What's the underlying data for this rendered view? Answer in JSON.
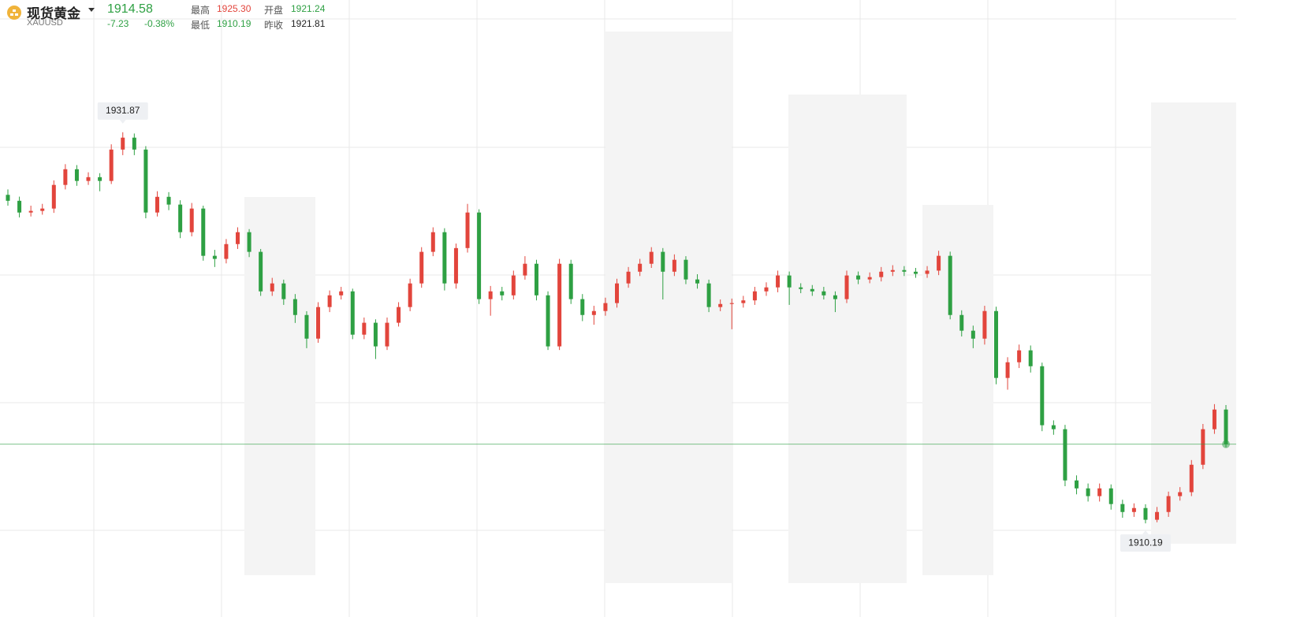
{
  "header": {
    "name": "现货黄金",
    "symbol": "XAUUSD",
    "price": "1914.58",
    "change": "-7.23",
    "change_pct": "-0.38%",
    "stats": [
      {
        "label": "最高",
        "value": "1925.30"
      },
      {
        "label": "开盘",
        "value": "1921.24"
      },
      {
        "label": "最低",
        "value": "1910.19"
      },
      {
        "label": "昨收",
        "value": "1921.81"
      }
    ]
  },
  "chart_data": {
    "type": "candlestick",
    "ylim": [
      1905.0,
      1939.2
    ],
    "up_color": "#e2453c",
    "down_color": "#2ea043",
    "open": [
      1928.4,
      1928.07,
      1927.42,
      1927.51,
      1927.64,
      1928.95,
      1929.82,
      1929.17,
      1929.38,
      1929.17,
      1930.91,
      1931.57,
      1930.91,
      1927.42,
      1928.29,
      1927.86,
      1926.33,
      1927.64,
      1925.02,
      1924.85,
      1925.67,
      1926.33,
      1925.24,
      1923.05,
      1923.49,
      1922.62,
      1921.74,
      1920.43,
      1922.18,
      1922.83,
      1923.05,
      1920.65,
      1921.31,
      1920.0,
      1921.31,
      1922.18,
      1923.49,
      1925.24,
      1926.33,
      1923.49,
      1925.45,
      1927.42,
      1922.62,
      1923.05,
      1922.83,
      1923.93,
      1924.58,
      1922.83,
      1920.0,
      1924.58,
      1922.62,
      1921.74,
      1921.96,
      1922.4,
      1923.49,
      1924.14,
      1924.58,
      1925.24,
      1924.14,
      1924.8,
      1923.71,
      1923.49,
      1922.18,
      1922.35,
      1922.4,
      1922.55,
      1923.05,
      1923.27,
      1923.93,
      1923.27,
      1923.18,
      1923.05,
      1922.83,
      1922.62,
      1923.93,
      1923.71,
      1923.84,
      1924.14,
      1924.23,
      1924.14,
      1924.02,
      1924.2,
      1925.02,
      1921.74,
      1920.87,
      1920.43,
      1921.96,
      1918.25,
      1919.12,
      1919.78,
      1918.9,
      1915.63,
      1915.41,
      1912.57,
      1912.13,
      1911.7,
      1912.13,
      1911.26,
      1910.82,
      1911.04,
      1910.39,
      1910.82,
      1911.7,
      1911.92,
      1913.44,
      1915.41,
      1916.5
    ],
    "high": [
      1928.7,
      1928.3,
      1927.8,
      1927.9,
      1929.2,
      1930.1,
      1930.05,
      1929.65,
      1929.6,
      1931.2,
      1931.87,
      1931.8,
      1931.1,
      1928.6,
      1928.55,
      1928.1,
      1927.95,
      1927.8,
      1925.35,
      1925.95,
      1926.6,
      1926.5,
      1925.4,
      1923.8,
      1923.7,
      1922.9,
      1921.95,
      1922.45,
      1923.1,
      1923.3,
      1923.2,
      1921.6,
      1921.5,
      1921.6,
      1922.45,
      1923.75,
      1925.5,
      1926.6,
      1926.55,
      1925.7,
      1927.9,
      1927.6,
      1923.35,
      1923.3,
      1924.2,
      1925.0,
      1924.8,
      1923.05,
      1924.85,
      1924.8,
      1922.9,
      1922.25,
      1922.7,
      1923.75,
      1924.4,
      1924.85,
      1925.5,
      1925.45,
      1925.1,
      1925.0,
      1924.0,
      1923.7,
      1922.6,
      1922.65,
      1922.8,
      1923.3,
      1923.55,
      1924.2,
      1924.15,
      1923.5,
      1923.4,
      1923.3,
      1923.05,
      1924.2,
      1924.15,
      1924.1,
      1924.4,
      1924.5,
      1924.45,
      1924.35,
      1924.45,
      1925.3,
      1925.25,
      1922.0,
      1921.15,
      1922.25,
      1922.2,
      1919.4,
      1920.1,
      1920.05,
      1919.1,
      1915.9,
      1915.65,
      1912.85,
      1912.4,
      1912.4,
      1912.35,
      1911.5,
      1911.3,
      1911.25,
      1911.1,
      1911.95,
      1912.2,
      1913.7,
      1915.7,
      1916.8,
      1916.75
    ],
    "low": [
      1927.8,
      1927.15,
      1927.2,
      1927.3,
      1927.4,
      1928.7,
      1928.9,
      1928.95,
      1928.6,
      1929.0,
      1930.6,
      1930.6,
      1927.1,
      1927.2,
      1927.55,
      1926.0,
      1926.1,
      1924.75,
      1924.4,
      1924.6,
      1925.4,
      1924.95,
      1922.8,
      1922.8,
      1922.3,
      1921.3,
      1919.9,
      1920.2,
      1921.9,
      1922.6,
      1920.4,
      1920.4,
      1919.3,
      1919.8,
      1921.1,
      1921.95,
      1923.25,
      1925.0,
      1923.1,
      1923.2,
      1925.2,
      1922.35,
      1921.7,
      1922.55,
      1922.6,
      1923.7,
      1922.55,
      1919.8,
      1919.8,
      1922.35,
      1921.4,
      1921.2,
      1921.7,
      1922.15,
      1923.25,
      1923.9,
      1924.35,
      1922.6,
      1923.9,
      1923.45,
      1923.2,
      1921.9,
      1921.95,
      1920.95,
      1922.15,
      1922.3,
      1922.8,
      1923.0,
      1922.3,
      1922.95,
      1922.8,
      1922.6,
      1921.9,
      1922.4,
      1923.45,
      1923.5,
      1923.6,
      1923.9,
      1923.9,
      1923.8,
      1923.8,
      1923.95,
      1921.5,
      1920.55,
      1919.9,
      1920.1,
      1917.9,
      1917.6,
      1918.8,
      1918.55,
      1915.3,
      1915.1,
      1912.25,
      1911.8,
      1911.4,
      1911.4,
      1910.95,
      1910.5,
      1910.55,
      1910.19,
      1910.25,
      1910.55,
      1911.45,
      1911.7,
      1913.2,
      1915.15,
      1914.4
    ],
    "close": [
      1928.07,
      1927.42,
      1927.51,
      1927.64,
      1928.95,
      1929.82,
      1929.17,
      1929.38,
      1929.17,
      1930.91,
      1931.57,
      1930.91,
      1927.42,
      1928.29,
      1927.86,
      1926.33,
      1927.64,
      1925.02,
      1924.85,
      1925.67,
      1926.33,
      1925.24,
      1923.05,
      1923.49,
      1922.62,
      1921.74,
      1920.43,
      1922.18,
      1922.83,
      1923.05,
      1920.65,
      1921.31,
      1920.0,
      1921.31,
      1922.18,
      1923.49,
      1925.24,
      1926.33,
      1923.49,
      1925.45,
      1927.42,
      1922.62,
      1923.05,
      1922.83,
      1923.93,
      1924.58,
      1922.83,
      1920.0,
      1924.58,
      1922.62,
      1921.74,
      1921.96,
      1922.4,
      1923.49,
      1924.14,
      1924.58,
      1925.24,
      1924.14,
      1924.8,
      1923.71,
      1923.49,
      1922.18,
      1922.35,
      1922.4,
      1922.55,
      1923.05,
      1923.27,
      1923.93,
      1923.27,
      1923.18,
      1923.05,
      1922.83,
      1922.62,
      1923.93,
      1923.71,
      1923.84,
      1924.14,
      1924.23,
      1924.14,
      1924.02,
      1924.2,
      1925.02,
      1921.74,
      1920.87,
      1920.43,
      1921.96,
      1918.25,
      1919.12,
      1919.78,
      1918.9,
      1915.63,
      1915.41,
      1912.57,
      1912.13,
      1911.7,
      1912.13,
      1911.26,
      1910.82,
      1911.04,
      1910.39,
      1910.82,
      1911.7,
      1911.92,
      1913.44,
      1915.41,
      1916.5,
      1914.58
    ]
  }
}
